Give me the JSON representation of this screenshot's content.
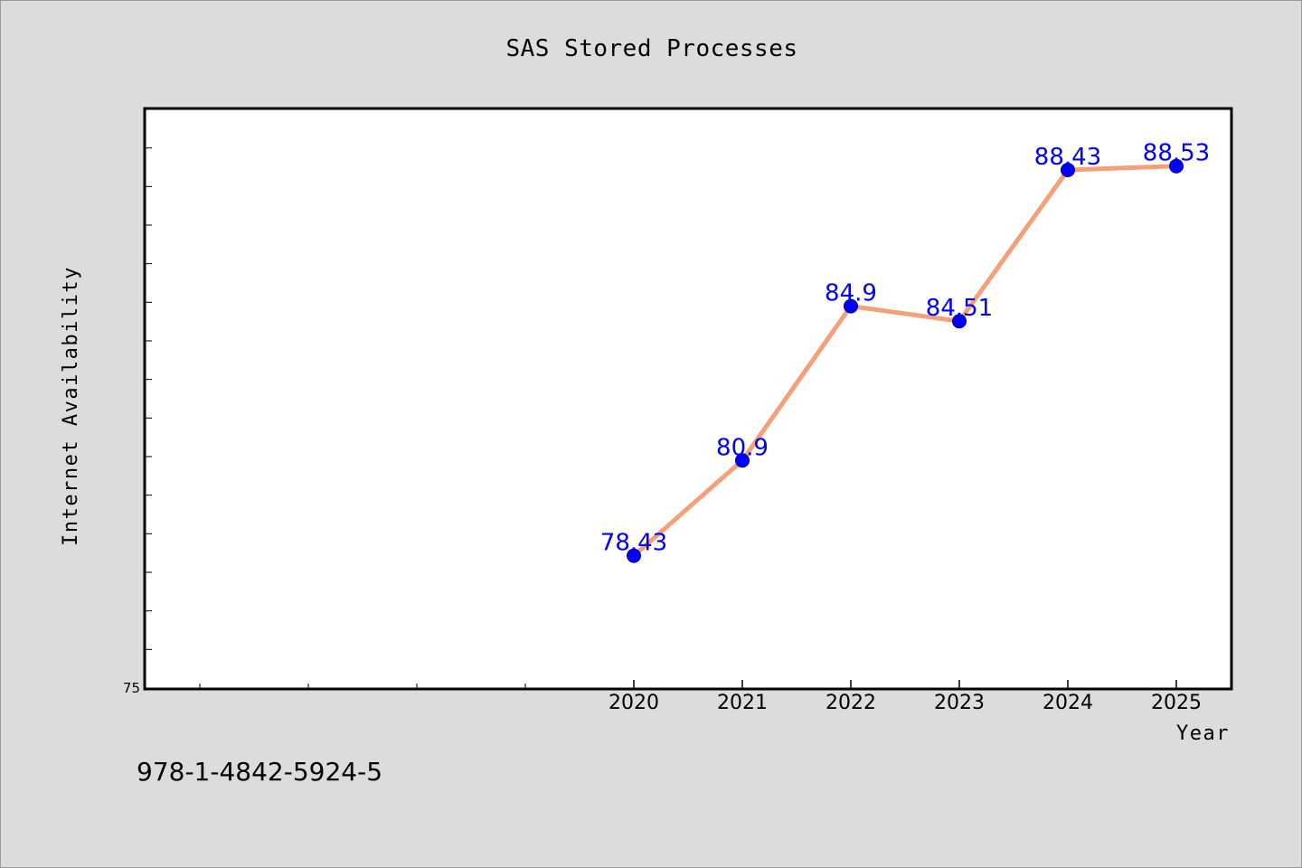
{
  "chart_data": {
    "type": "line",
    "title": "SAS Stored Processes",
    "xlabel": "Year",
    "ylabel": "Internet Availability",
    "x": [
      2020,
      2021,
      2022,
      2023,
      2024,
      2025
    ],
    "x_tick_labels": [
      "2020",
      "2021",
      "2022",
      "2023",
      "2024",
      "2025"
    ],
    "x_minor_ticks": [
      2016,
      2017,
      2018,
      2019
    ],
    "xlim": [
      2015.5,
      2025.5
    ],
    "series": [
      {
        "values": [
          78.43,
          80.9,
          84.9,
          84.51,
          88.43,
          88.53
        ],
        "data_labels": [
          "78.43",
          "80.9",
          "84.9",
          "84.51",
          "88.43",
          "88.53"
        ],
        "line_color": "#f4a07a",
        "marker_color": "#0000ff"
      }
    ],
    "y_tick_labels": [
      "75"
    ],
    "ylim": [
      75,
      90
    ],
    "y_minor_step": 1,
    "grid": false,
    "legend": "none"
  },
  "footer": {
    "identifier": "978-1-4842-5924-5"
  },
  "colors": {
    "background": "#dcdcdc",
    "plot_area": "#ffffff",
    "line": "#f4a07a",
    "marker": "#0000ff",
    "data_label": "#0000ff"
  }
}
